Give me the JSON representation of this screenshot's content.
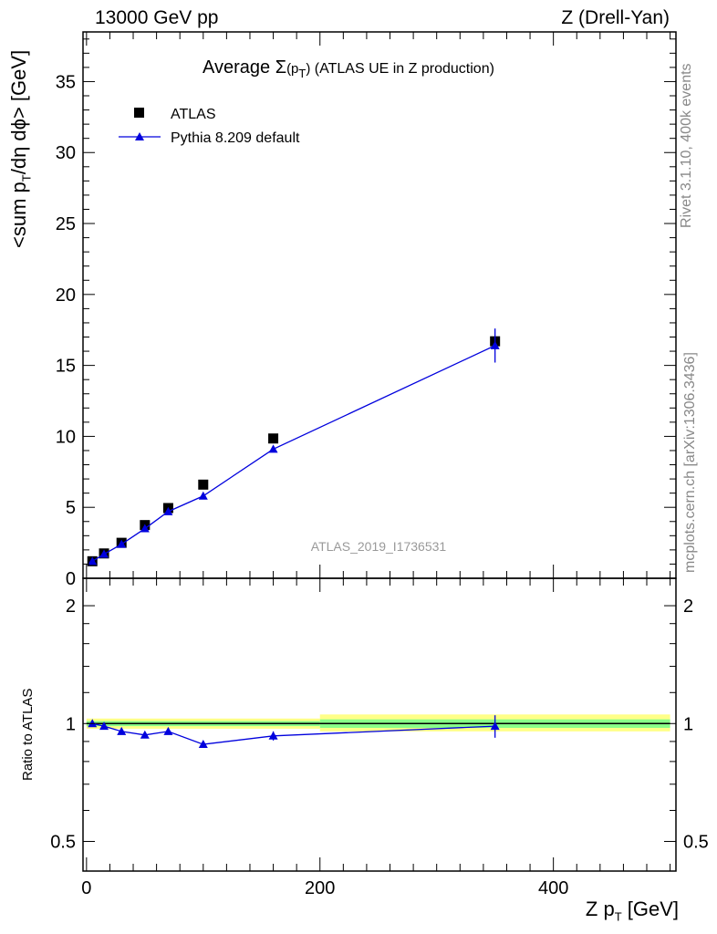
{
  "header": {
    "left": "13000 GeV pp",
    "right": "Z (Drell-Yan)"
  },
  "side_labels": {
    "rivet": "Rivet 3.1.10,  400k events",
    "mcplots": "mcplots.cern.ch [arXiv:1306.3436]"
  },
  "watermark": "ATLAS_2019_I1736531",
  "title": {
    "prefix": "Average ",
    "sigma": "Σ",
    "paren_open": "(p",
    "sub": "T",
    "paren_close": ")",
    "suffix": " (ATLAS UE in Z production)"
  },
  "axes": {
    "ylabel_main_pre": "<sum p",
    "ylabel_main_sub": "T",
    "ylabel_main_post": "/dη dϕ> [GeV]",
    "ylabel_ratio": "Ratio to ATLAS",
    "xlabel_pre": "Z p",
    "xlabel_sub": "T",
    "xlabel_post": " [GeV]"
  },
  "colors": {
    "mc": "#0000dd",
    "band_outer": "#ffff88",
    "band_inner": "#88ff88"
  },
  "chart_data": [
    {
      "type": "scatter",
      "panel": "main",
      "xlim": [
        -3,
        505
      ],
      "ylim": [
        0,
        38.5
      ],
      "yticks": [
        0,
        5,
        10,
        15,
        20,
        25,
        30,
        35
      ],
      "legend": [
        "ATLAS",
        "Pythia 8.209 default"
      ],
      "legend_position": "top-left",
      "series": [
        {
          "name": "ATLAS",
          "marker": "square",
          "points": [
            {
              "x": 5,
              "y": 1.2
            },
            {
              "x": 15,
              "y": 1.75
            },
            {
              "x": 30,
              "y": 2.5
            },
            {
              "x": 50,
              "y": 3.75
            },
            {
              "x": 70,
              "y": 4.95
            },
            {
              "x": 100,
              "y": 6.6
            },
            {
              "x": 160,
              "y": 9.85
            },
            {
              "x": 350,
              "y": 16.7
            }
          ]
        },
        {
          "name": "Pythia 8.209 default",
          "marker": "triangle",
          "line": true,
          "points": [
            {
              "x": 5,
              "y": 1.2,
              "err": 0.05
            },
            {
              "x": 15,
              "y": 1.7,
              "err": 0.05
            },
            {
              "x": 30,
              "y": 2.4,
              "err": 0.05
            },
            {
              "x": 50,
              "y": 3.5,
              "err": 0.1
            },
            {
              "x": 70,
              "y": 4.7,
              "err": 0.1
            },
            {
              "x": 100,
              "y": 5.8,
              "err": 0.1
            },
            {
              "x": 160,
              "y": 9.1,
              "err": 0.2
            },
            {
              "x": 350,
              "y": 16.4,
              "err": 1.2
            }
          ]
        }
      ]
    },
    {
      "type": "scatter",
      "panel": "ratio",
      "xlim": [
        -3,
        505
      ],
      "xticks": [
        0,
        200,
        400
      ],
      "ylim": [
        0.42,
        2.35
      ],
      "ytick_labels": [
        {
          "v": 0.5,
          "label": "0.5"
        },
        {
          "v": 1,
          "label": "1"
        },
        {
          "v": 2,
          "label": "2"
        }
      ],
      "bands": [
        {
          "x0": 0,
          "x1": 200,
          "outer": [
            0.97,
            1.03
          ],
          "inner": [
            0.985,
            1.015
          ]
        },
        {
          "x0": 200,
          "x1": 500,
          "outer": [
            0.955,
            1.055
          ],
          "inner": [
            0.975,
            1.025
          ]
        }
      ],
      "reference_line": 1,
      "series": [
        {
          "name": "Pythia 8.209 default",
          "points": [
            {
              "x": 5,
              "y": 1.0,
              "err": 0.01
            },
            {
              "x": 15,
              "y": 0.985,
              "err": 0.01
            },
            {
              "x": 30,
              "y": 0.955,
              "err": 0.01
            },
            {
              "x": 50,
              "y": 0.935,
              "err": 0.01
            },
            {
              "x": 70,
              "y": 0.955,
              "err": 0.01
            },
            {
              "x": 100,
              "y": 0.885,
              "err": 0.015
            },
            {
              "x": 160,
              "y": 0.93,
              "err": 0.025
            },
            {
              "x": 350,
              "y": 0.985,
              "err": 0.065
            }
          ]
        }
      ]
    }
  ]
}
